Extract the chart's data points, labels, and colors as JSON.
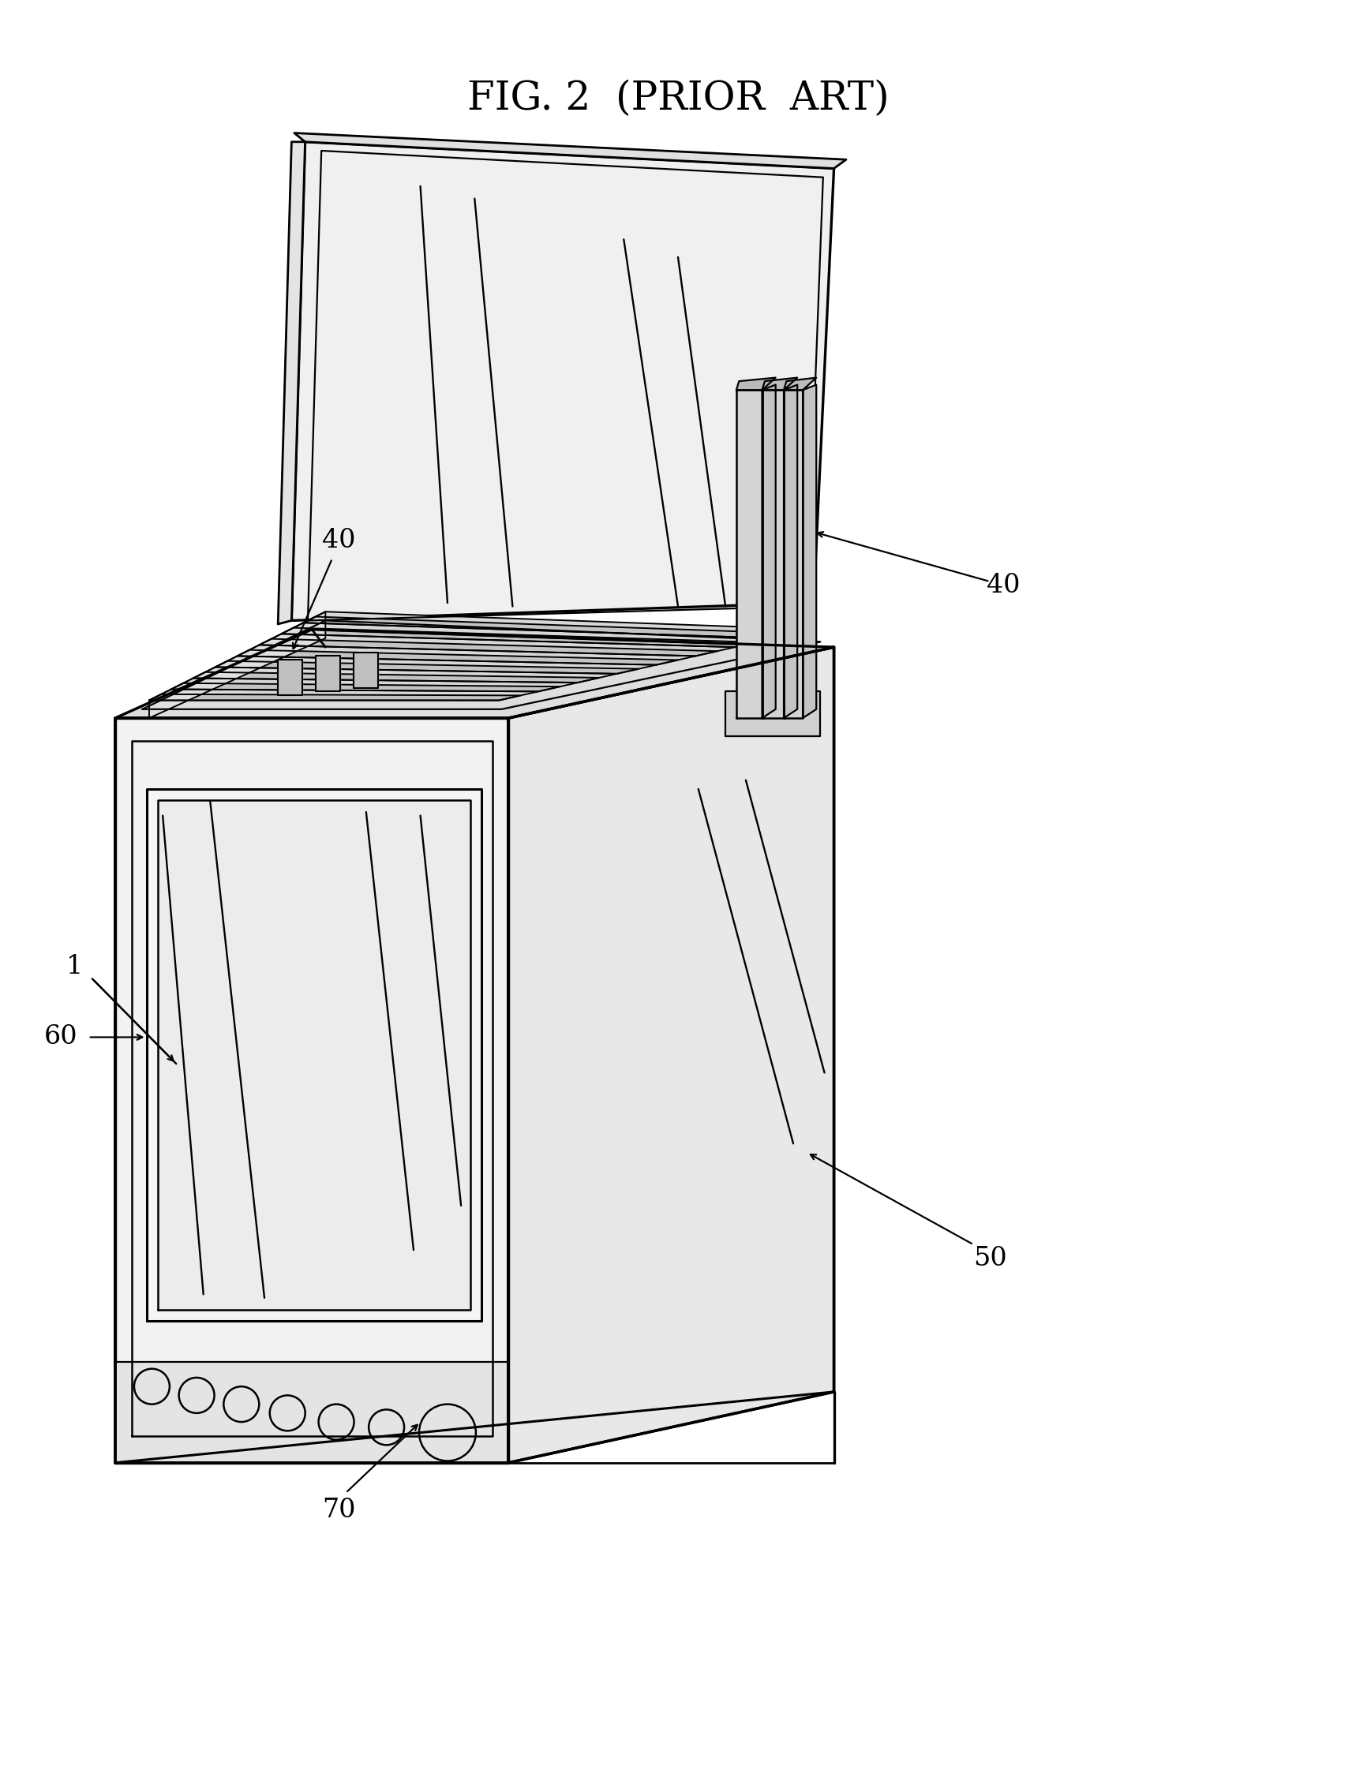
{
  "title": "FIG. 2  (PRIOR  ART)",
  "title_fontsize": 36,
  "background_color": "#ffffff",
  "line_color": "#000000",
  "line_width": 2.0,
  "label_fontsize": 24,
  "fill_front": "#f2f2f2",
  "fill_right": "#e8e8e8",
  "fill_top": "#dedede",
  "fill_interior": "#d8d8d8",
  "fill_panel": "#f0f0f0",
  "fill_panel_side": "#e4e4e4",
  "fill_rib": "#c8c8c8",
  "fill_pin": "#d4d4d4"
}
